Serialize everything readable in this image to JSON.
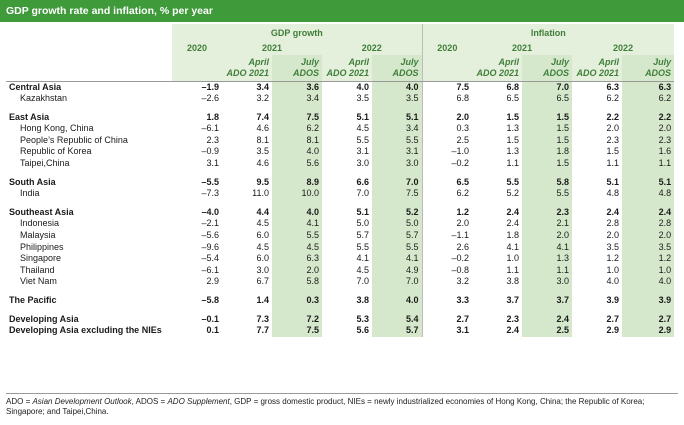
{
  "title": "GDP growth rate and inflation, % per year",
  "header": {
    "gdp_group": "GDP growth",
    "inflation_group": "Inflation",
    "years": [
      "2020",
      "2021",
      "2022",
      "2020",
      "2021",
      "2022"
    ],
    "sub_cols": [
      {
        "line1": "April",
        "line2": "ADO 2021"
      },
      {
        "line1": "July",
        "line2": "ADOS"
      },
      {
        "line1": "April",
        "line2": "ADO 2021"
      },
      {
        "line1": "July",
        "line2": "ADOS"
      },
      {
        "line1": "April",
        "line2": "ADO 2021"
      },
      {
        "line1": "July",
        "line2": "ADOS"
      },
      {
        "line1": "April",
        "line2": "ADO 2021"
      },
      {
        "line1": "July",
        "line2": "ADOS"
      }
    ]
  },
  "rows": [
    {
      "label": "Central Asia",
      "bold": true,
      "gap": false,
      "v": [
        "–1.9",
        "3.4",
        "3.6",
        "4.0",
        "4.0",
        "7.5",
        "6.8",
        "7.0",
        "6.3",
        "6.3"
      ]
    },
    {
      "label": "Kazakhstan",
      "bold": false,
      "gap": false,
      "v": [
        "–2.6",
        "3.2",
        "3.4",
        "3.5",
        "3.5",
        "6.8",
        "6.5",
        "6.5",
        "6.2",
        "6.2"
      ]
    },
    {
      "label": "East Asia",
      "bold": true,
      "gap": true,
      "v": [
        "1.8",
        "7.4",
        "7.5",
        "5.1",
        "5.1",
        "2.0",
        "1.5",
        "1.5",
        "2.2",
        "2.2"
      ]
    },
    {
      "label": "Hong Kong, China",
      "bold": false,
      "gap": false,
      "v": [
        "–6.1",
        "4.6",
        "6.2",
        "4.5",
        "3.4",
        "0.3",
        "1.3",
        "1.5",
        "2.0",
        "2.0"
      ]
    },
    {
      "label": "People’s Republic of China",
      "bold": false,
      "gap": false,
      "v": [
        "2.3",
        "8.1",
        "8.1",
        "5.5",
        "5.5",
        "2.5",
        "1.5",
        "1.5",
        "2.3",
        "2.3"
      ]
    },
    {
      "label": "Republic of Korea",
      "bold": false,
      "gap": false,
      "v": [
        "–0.9",
        "3.5",
        "4.0",
        "3.1",
        "3.1",
        "–1.0",
        "1.3",
        "1.8",
        "1.5",
        "1.6"
      ]
    },
    {
      "label": "Taipei,China",
      "bold": false,
      "gap": false,
      "v": [
        "3.1",
        "4.6",
        "5.6",
        "3.0",
        "3.0",
        "–0.2",
        "1.1",
        "1.5",
        "1.1",
        "1.1"
      ]
    },
    {
      "label": "South Asia",
      "bold": true,
      "gap": true,
      "v": [
        "–5.5",
        "9.5",
        "8.9",
        "6.6",
        "7.0",
        "6.5",
        "5.5",
        "5.8",
        "5.1",
        "5.1"
      ]
    },
    {
      "label": "India",
      "bold": false,
      "gap": false,
      "v": [
        "–7.3",
        "11.0",
        "10.0",
        "7.0",
        "7.5",
        "6.2",
        "5.2",
        "5.5",
        "4.8",
        "4.8"
      ]
    },
    {
      "label": "Southeast Asia",
      "bold": true,
      "gap": true,
      "v": [
        "–4.0",
        "4.4",
        "4.0",
        "5.1",
        "5.2",
        "1.2",
        "2.4",
        "2.3",
        "2.4",
        "2.4"
      ]
    },
    {
      "label": "Indonesia",
      "bold": false,
      "gap": false,
      "v": [
        "–2.1",
        "4.5",
        "4.1",
        "5.0",
        "5.0",
        "2.0",
        "2.4",
        "2.1",
        "2.8",
        "2.8"
      ]
    },
    {
      "label": "Malaysia",
      "bold": false,
      "gap": false,
      "v": [
        "–5.6",
        "6.0",
        "5.5",
        "5.7",
        "5.7",
        "–1.1",
        "1.8",
        "2.0",
        "2.0",
        "2.0"
      ]
    },
    {
      "label": "Philippines",
      "bold": false,
      "gap": false,
      "v": [
        "–9.6",
        "4.5",
        "4.5",
        "5.5",
        "5.5",
        "2.6",
        "4.1",
        "4.1",
        "3.5",
        "3.5"
      ]
    },
    {
      "label": "Singapore",
      "bold": false,
      "gap": false,
      "v": [
        "–5.4",
        "6.0",
        "6.3",
        "4.1",
        "4.1",
        "–0.2",
        "1.0",
        "1.3",
        "1.2",
        "1.2"
      ]
    },
    {
      "label": "Thailand",
      "bold": false,
      "gap": false,
      "v": [
        "–6.1",
        "3.0",
        "2.0",
        "4.5",
        "4.9",
        "–0.8",
        "1.1",
        "1.1",
        "1.0",
        "1.0"
      ]
    },
    {
      "label": "Viet Nam",
      "bold": false,
      "gap": false,
      "v": [
        "2.9",
        "6.7",
        "5.8",
        "7.0",
        "7.0",
        "3.2",
        "3.8",
        "3.0",
        "4.0",
        "4.0"
      ]
    },
    {
      "label": "The Pacific",
      "bold": true,
      "gap": true,
      "v": [
        "–5.8",
        "1.4",
        "0.3",
        "3.8",
        "4.0",
        "3.3",
        "3.7",
        "3.7",
        "3.9",
        "3.9"
      ]
    },
    {
      "label": "Developing Asia",
      "bold": true,
      "gap": true,
      "v": [
        "–0.1",
        "7.3",
        "7.2",
        "5.3",
        "5.4",
        "2.7",
        "2.3",
        "2.4",
        "2.7",
        "2.7"
      ]
    },
    {
      "label": "Developing Asia excluding the NIEs",
      "bold": true,
      "gap": false,
      "v": [
        "0.1",
        "7.7",
        "7.5",
        "5.6",
        "5.7",
        "3.1",
        "2.4",
        "2.5",
        "2.9",
        "2.9"
      ]
    }
  ],
  "footnote": {
    "ado_abbr": "ADO",
    "ado_def": "Asian Development Outlook",
    "ados_abbr": "ADOS",
    "ados_def": "ADO Supplement",
    "rest": ", GDP = gross domestic product, NIEs = newly industrialized economies of Hong Kong, China; the Republic of Korea; Singapore; and Taipei,China."
  },
  "colors": {
    "title_bg": "#3f9a3a",
    "header_text": "#3f7f3a",
    "group_band": "#e4efdc",
    "highlight_col": "#d6e8cc"
  }
}
